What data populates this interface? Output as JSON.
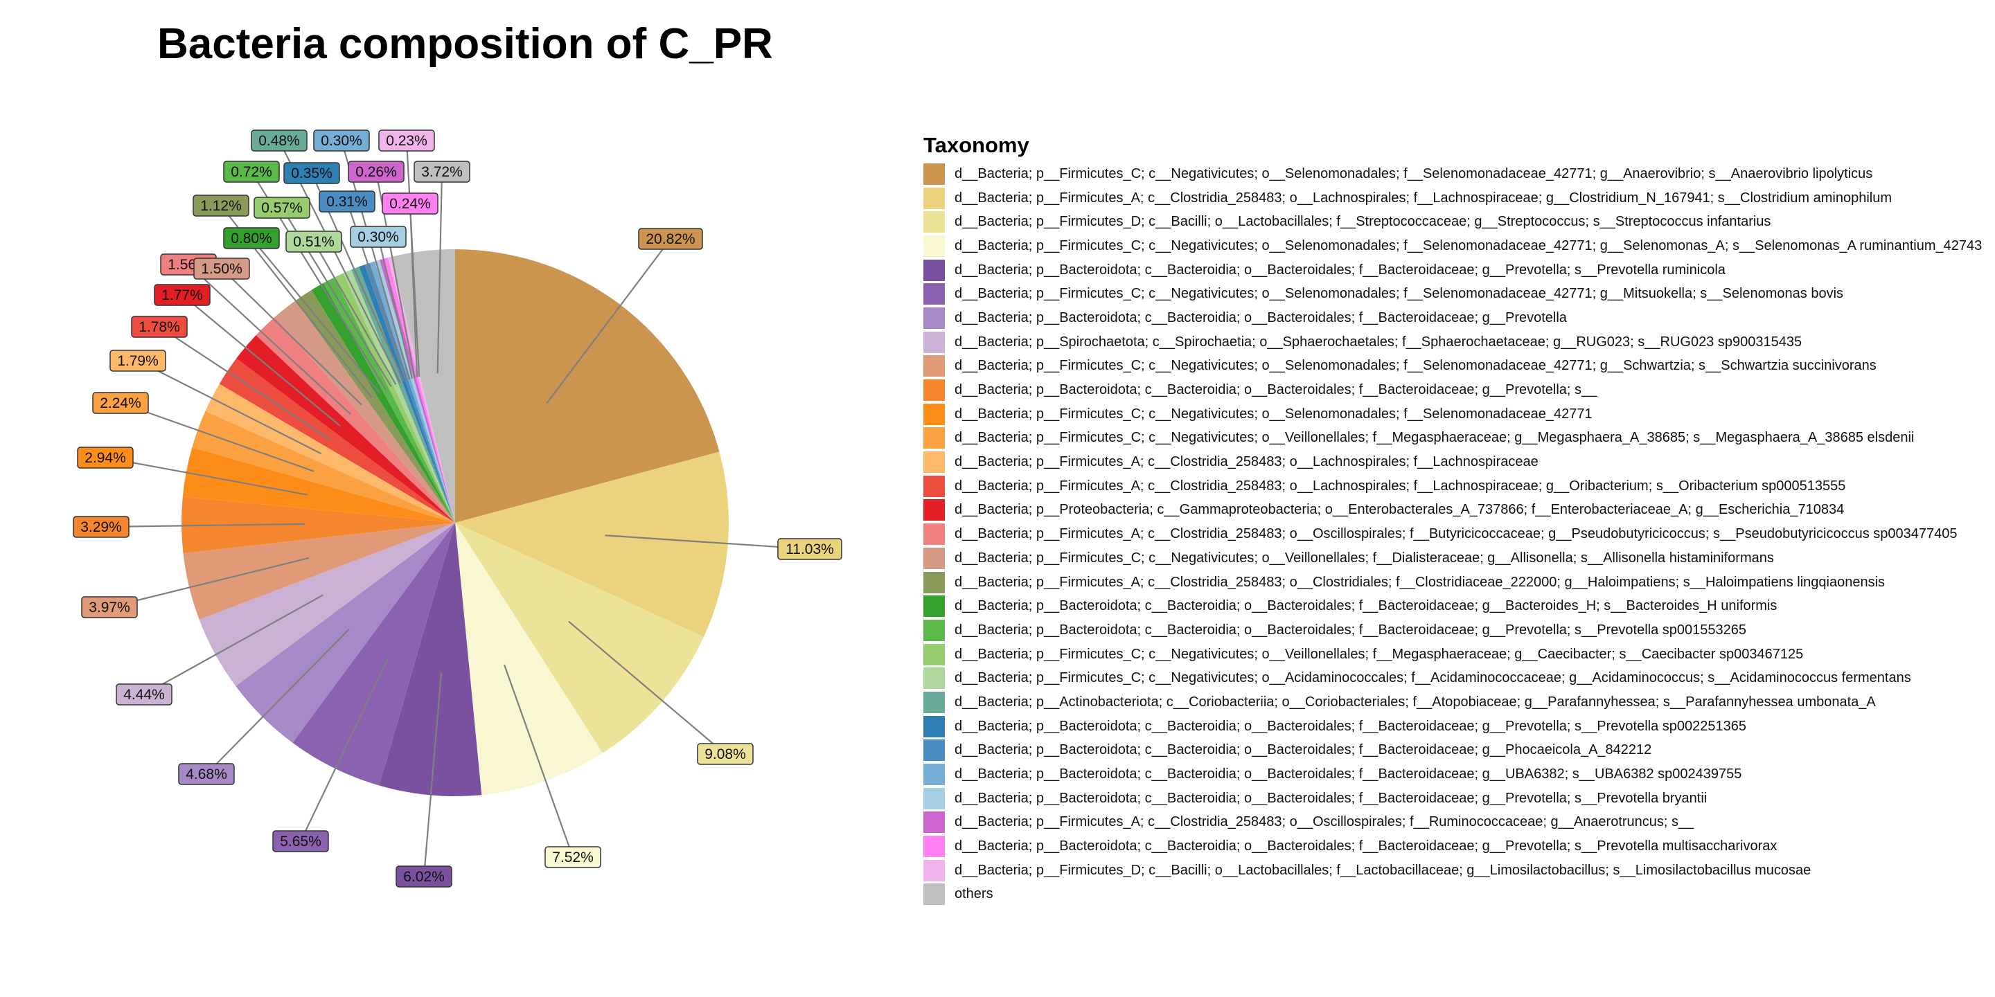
{
  "chart_data": {
    "type": "pie",
    "title": "Bacteria composition of C_PR",
    "legend_title": "Taxonomy",
    "legend_position": "right",
    "label_style": "percent labels with leader lines",
    "slices": [
      {
        "name": "d__Bacteria; p__Firmicutes_C; c__Negativicutes; o__Selenomonadales; f__Selenomonadaceae_42771; g__Anaerovibrio; s__Anaerovibrio lipolyticus",
        "value": 20.82,
        "label": "20.82%",
        "color": "#CC954F"
      },
      {
        "name": "d__Bacteria; p__Firmicutes_A; c__Clostridia_258483; o__Lachnospirales; f__Lachnospiraceae; g__Clostridium_N_167941; s__Clostridium aminophilum",
        "value": 11.03,
        "label": "11.03%",
        "color": "#EAD37C"
      },
      {
        "name": "d__Bacteria; p__Firmicutes_D; c__Bacilli; o__Lactobacillales; f__Streptococcaceae; g__Streptococcus; s__Streptococcus infantarius",
        "value": 9.08,
        "label": "9.08%",
        "color": "#ECE398"
      },
      {
        "name": "d__Bacteria; p__Firmicutes_C; c__Negativicutes; o__Selenomonadales; f__Selenomonadaceae_42771; g__Selenomonas_A; s__Selenomonas_A ruminantium_42743",
        "value": 7.52,
        "label": "7.52%",
        "color": "#F8F7D2"
      },
      {
        "name": "d__Bacteria; p__Bacteroidota; c__Bacteroidia; o__Bacteroidales; f__Bacteroidaceae; g__Prevotella; s__Prevotella ruminicola",
        "value": 6.02,
        "label": "6.02%",
        "color": "#7A519E"
      },
      {
        "name": "d__Bacteria; p__Firmicutes_C; c__Negativicutes; o__Selenomonadales; f__Selenomonadaceae_42771; g__Mitsuokella; s__Selenomonas bovis",
        "value": 5.65,
        "label": "5.65%",
        "color": "#8A62B0"
      },
      {
        "name": "d__Bacteria; p__Bacteroidota; c__Bacteroidia; o__Bacteroidales; f__Bacteroidaceae; g__Prevotella",
        "value": 4.68,
        "label": "4.68%",
        "color": "#A689C6"
      },
      {
        "name": "d__Bacteria; p__Spirochaetota; c__Spirochaetia; o__Sphaerochaetales; f__Sphaerochaetaceae; g__RUG023; s__RUG023 sp900315435",
        "value": 4.44,
        "label": "4.44%",
        "color": "#CBB1D4"
      },
      {
        "name": "d__Bacteria; p__Firmicutes_C; c__Negativicutes; o__Selenomonadales; f__Selenomonadaceae_42771; g__Schwartzia; s__Schwartzia succinivorans",
        "value": 3.97,
        "label": "3.97%",
        "color": "#E09A78"
      },
      {
        "name": "d__Bacteria; p__Bacteroidota; c__Bacteroidia; o__Bacteroidales; f__Bacteroidaceae; g__Prevotella; s__",
        "value": 3.29,
        "label": "3.29%",
        "color": "#F5862E"
      },
      {
        "name": "d__Bacteria; p__Firmicutes_C; c__Negativicutes; o__Selenomonadales; f__Selenomonadaceae_42771",
        "value": 2.94,
        "label": "2.94%",
        "color": "#FD8D18"
      },
      {
        "name": "d__Bacteria; p__Firmicutes_C; c__Negativicutes; o__Veillonellales; f__Megasphaeraceae; g__Megasphaera_A_38685; s__Megasphaera_A_38685 elsdenii",
        "value": 2.24,
        "label": "2.24%",
        "color": "#FCA141"
      },
      {
        "name": "d__Bacteria; p__Firmicutes_A; c__Clostridia_258483; o__Lachnospirales; f__Lachnospiraceae",
        "value": 1.79,
        "label": "1.79%",
        "color": "#FDB86A"
      },
      {
        "name": "d__Bacteria; p__Firmicutes_A; c__Clostridia_258483; o__Lachnospirales; f__Lachnospiraceae; g__Oribacterium; s__Oribacterium sp000513555",
        "value": 1.78,
        "label": "1.78%",
        "color": "#EC4D3E"
      },
      {
        "name": "d__Bacteria; p__Proteobacteria; c__Gammaproteobacteria; o__Enterobacterales_A_737866; f__Enterobacteriaceae_A; g__Escherichia_710834",
        "value": 1.77,
        "label": "1.77%",
        "color": "#E41E27"
      },
      {
        "name": "d__Bacteria; p__Firmicutes_A; c__Clostridia_258483; o__Oscillospirales; f__Butyricicoccaceae; g__Pseudobutyricicoccus; s__Pseudobutyricicoccus sp003477405",
        "value": 1.56,
        "label": "1.56%",
        "color": "#F08080"
      },
      {
        "name": "d__Bacteria; p__Firmicutes_C; c__Negativicutes; o__Veillonellales; f__Dialisteraceae; g__Allisonella; s__Allisonella histaminiformans",
        "value": 1.5,
        "label": "1.50%",
        "color": "#D59A85"
      },
      {
        "name": "d__Bacteria; p__Firmicutes_A; c__Clostridia_258483; o__Clostridiales; f__Clostridiaceae_222000; g__Haloimpatiens; s__Haloimpatiens lingqiaonensis",
        "value": 1.12,
        "label": "1.12%",
        "color": "#8A9A5B"
      },
      {
        "name": "d__Bacteria; p__Bacteroidota; c__Bacteroidia; o__Bacteroidales; f__Bacteroidaceae; g__Bacteroides_H; s__Bacteroides_H uniformis",
        "value": 0.8,
        "label": "0.80%",
        "color": "#34A12E"
      },
      {
        "name": "d__Bacteria; p__Bacteroidota; c__Bacteroidia; o__Bacteroidales; f__Bacteroidaceae; g__Prevotella; s__Prevotella sp001553265",
        "value": 0.72,
        "label": "0.72%",
        "color": "#5BB84A"
      },
      {
        "name": "d__Bacteria; p__Firmicutes_C; c__Negativicutes; o__Veillonellales; f__Megasphaeraceae; g__Caecibacter; s__Caecibacter sp003467125",
        "value": 0.57,
        "label": "0.57%",
        "color": "#96CC6E"
      },
      {
        "name": "d__Bacteria; p__Firmicutes_C; c__Negativicutes; o__Acidaminococcales; f__Acidaminococcaceae; g__Acidaminococcus; s__Acidaminococcus fermentans",
        "value": 0.51,
        "label": "0.51%",
        "color": "#AED89B"
      },
      {
        "name": "d__Bacteria; p__Actinobacteriota; c__Coriobacteriia; o__Coriobacteriales; f__Atopobiaceae; g__Parafannyhessea; s__Parafannyhessea umbonata_A",
        "value": 0.48,
        "label": "0.48%",
        "color": "#6AAA98"
      },
      {
        "name": "d__Bacteria; p__Bacteroidota; c__Bacteroidia; o__Bacteroidales; f__Bacteroidaceae; g__Prevotella; s__Prevotella sp002251365",
        "value": 0.35,
        "label": "0.35%",
        "color": "#2F7FB3"
      },
      {
        "name": "d__Bacteria; p__Bacteroidota; c__Bacteroidia; o__Bacteroidales; f__Bacteroidaceae; g__Phocaeicola_A_842212",
        "value": 0.31,
        "label": "0.31%",
        "color": "#4A8CC2"
      },
      {
        "name": "d__Bacteria; p__Bacteroidota; c__Bacteroidia; o__Bacteroidales; f__Bacteroidaceae; g__UBA6382; s__UBA6382 sp002439755",
        "value": 0.3,
        "label": "0.30%",
        "color": "#76ADD4"
      },
      {
        "name": "d__Bacteria; p__Bacteroidota; c__Bacteroidia; o__Bacteroidales; f__Bacteroidaceae; g__Prevotella; s__Prevotella bryantii",
        "value": 0.3,
        "label": "0.30%",
        "color": "#A6CEE3"
      },
      {
        "name": "d__Bacteria; p__Firmicutes_A; c__Clostridia_258483; o__Oscillospirales; f__Ruminococcaceae; g__Anaerotruncus; s__",
        "value": 0.26,
        "label": "0.26%",
        "color": "#CC66CC"
      },
      {
        "name": "d__Bacteria; p__Bacteroidota; c__Bacteroidia; o__Bacteroidales; f__Bacteroidaceae; g__Prevotella; s__Prevotella multisaccharivorax",
        "value": 0.24,
        "label": "0.24%",
        "color": "#FF80F0"
      },
      {
        "name": "d__Bacteria; p__Firmicutes_D; c__Bacilli; o__Lactobacillales; f__Lactobacillaceae; g__Limosilactobacillus; s__Limosilactobacillus mucosae",
        "value": 0.23,
        "label": "0.23%",
        "color": "#F0B4EA"
      },
      {
        "name": "others",
        "value": 3.72,
        "label": "3.72%",
        "color": "#BFBFBF"
      }
    ]
  }
}
